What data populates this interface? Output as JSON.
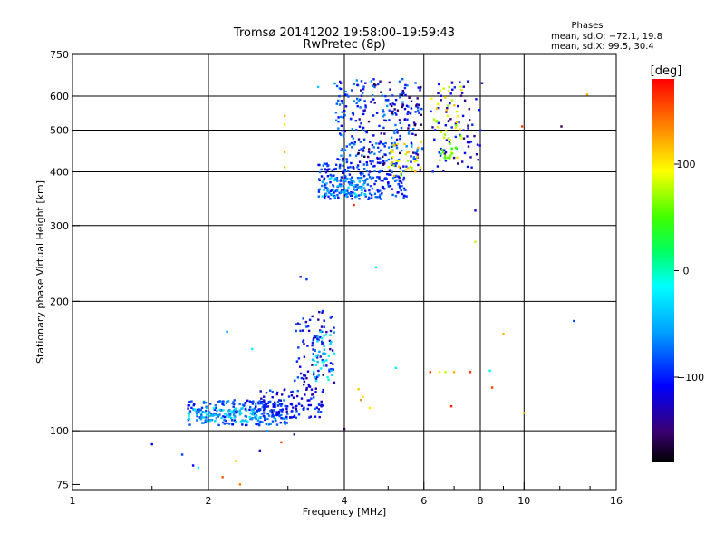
{
  "chart_data": {
    "type": "scatter",
    "title": "Tromsø 20141202 19:58:00–19:59:43",
    "subtitle": "RwPretec (8p)",
    "xlabel": "Frequency [MHz]",
    "ylabel": "Stationary phase Virtual Height [km]",
    "x_scale": "log2",
    "y_scale": "log",
    "xlim": [
      1,
      16
    ],
    "ylim": [
      73,
      750
    ],
    "x_ticks": [
      1,
      2,
      4,
      6,
      8,
      10,
      16
    ],
    "y_ticks": [
      75,
      100,
      200,
      300,
      400,
      500,
      600,
      750
    ],
    "grid": true,
    "stats": {
      "heading": "Phases",
      "line_o": "mean, sd,O: −72.1, 19.8",
      "line_x": "mean, sd,X:  99.5, 30.4"
    },
    "colorbar": {
      "label": "[deg]",
      "range": [
        -180,
        180
      ],
      "ticks": [
        100,
        0,
        -100
      ],
      "colors": [
        "#000000",
        "#3a0070",
        "#0000ff",
        "#00a0ff",
        "#00ffff",
        "#00ff60",
        "#40ff00",
        "#ffff00",
        "#ff8000",
        "#ff0000"
      ]
    },
    "series": [
      {
        "clusters": [
          {
            "x": [
              1.8,
              3.0
            ],
            "y": [
              103,
              118
            ],
            "phase": -85,
            "n": 200
          },
          {
            "x": [
              1.8,
              2.6
            ],
            "y": [
              105,
              113
            ],
            "phase": -40,
            "n": 70
          },
          {
            "x": [
              2.6,
              3.6
            ],
            "y": [
              107,
              125
            ],
            "phase": -105,
            "n": 120
          },
          {
            "x": [
              3.1,
              3.8
            ],
            "y": [
              125,
              190
            ],
            "phase": -110,
            "n": 90
          },
          {
            "x": [
              3.4,
              3.8
            ],
            "y": [
              130,
              170
            ],
            "phase": -35,
            "n": 40
          },
          {
            "x": [
              3.5,
              5.5
            ],
            "y": [
              345,
              420
            ],
            "phase": -95,
            "n": 240
          },
          {
            "x": [
              3.5,
              4.5
            ],
            "y": [
              350,
              390
            ],
            "phase": -50,
            "n": 80
          },
          {
            "x": [
              3.8,
              6.0
            ],
            "y": [
              420,
              660
            ],
            "phase": -90,
            "n": 230
          },
          {
            "x": [
              4.3,
              6.0
            ],
            "y": [
              400,
              650
            ],
            "phase": -140,
            "n": 70
          },
          {
            "x": [
              5.0,
              6.0
            ],
            "y": [
              380,
              470
            ],
            "phase": 95,
            "n": 35
          },
          {
            "x": [
              6.2,
              8.1
            ],
            "y": [
              400,
              660
            ],
            "phase": -120,
            "n": 75
          },
          {
            "x": [
              6.2,
              7.3
            ],
            "y": [
              420,
              640
            ],
            "phase": 90,
            "n": 40
          },
          {
            "x": [
              6.5,
              7.1
            ],
            "y": [
              430,
              470
            ],
            "phase": 40,
            "n": 12
          }
        ],
        "points": [
          {
            "x": 1.5,
            "y": 93,
            "phase": -110
          },
          {
            "x": 1.75,
            "y": 88,
            "phase": -90
          },
          {
            "x": 1.85,
            "y": 83,
            "phase": -110
          },
          {
            "x": 1.9,
            "y": 82,
            "phase": -20
          },
          {
            "x": 2.15,
            "y": 78,
            "phase": 150
          },
          {
            "x": 2.35,
            "y": 75,
            "phase": 140
          },
          {
            "x": 2.3,
            "y": 85,
            "phase": 110
          },
          {
            "x": 2.6,
            "y": 90,
            "phase": -130
          },
          {
            "x": 2.9,
            "y": 94,
            "phase": 160
          },
          {
            "x": 3.1,
            "y": 98,
            "phase": -140
          },
          {
            "x": 2.5,
            "y": 155,
            "phase": -20
          },
          {
            "x": 2.2,
            "y": 170,
            "phase": -60
          },
          {
            "x": 2.7,
            "y": 100,
            "phase": -60
          },
          {
            "x": 3.2,
            "y": 228,
            "phase": -120
          },
          {
            "x": 3.3,
            "y": 225,
            "phase": -90
          },
          {
            "x": 3.5,
            "y": 630,
            "phase": -40
          },
          {
            "x": 2.95,
            "y": 540,
            "phase": 120
          },
          {
            "x": 2.95,
            "y": 515,
            "phase": 100
          },
          {
            "x": 2.95,
            "y": 445,
            "phase": 120
          },
          {
            "x": 2.95,
            "y": 410,
            "phase": 110
          },
          {
            "x": 4.2,
            "y": 335,
            "phase": 170
          },
          {
            "x": 4.3,
            "y": 125,
            "phase": 110
          },
          {
            "x": 4.4,
            "y": 120,
            "phase": 100
          },
          {
            "x": 4.35,
            "y": 118,
            "phase": 130
          },
          {
            "x": 4.55,
            "y": 113,
            "phase": 100
          },
          {
            "x": 4.7,
            "y": 240,
            "phase": -10
          },
          {
            "x": 5.2,
            "y": 140,
            "phase": -20
          },
          {
            "x": 6.2,
            "y": 137,
            "phase": 160
          },
          {
            "x": 6.5,
            "y": 137,
            "phase": 90
          },
          {
            "x": 6.7,
            "y": 137,
            "phase": 80
          },
          {
            "x": 7.0,
            "y": 137,
            "phase": 120
          },
          {
            "x": 7.6,
            "y": 137,
            "phase": 170
          },
          {
            "x": 8.4,
            "y": 138,
            "phase": -10
          },
          {
            "x": 8.5,
            "y": 126,
            "phase": 160
          },
          {
            "x": 6.9,
            "y": 114,
            "phase": 170
          },
          {
            "x": 4.0,
            "y": 101,
            "phase": -160
          },
          {
            "x": 7.8,
            "y": 275,
            "phase": 80
          },
          {
            "x": 7.8,
            "y": 325,
            "phase": -120
          },
          {
            "x": 9.0,
            "y": 168,
            "phase": 120
          },
          {
            "x": 10.0,
            "y": 110,
            "phase": 110
          },
          {
            "x": 12.1,
            "y": 510,
            "phase": -160
          },
          {
            "x": 12.9,
            "y": 180,
            "phase": -90
          },
          {
            "x": 13.8,
            "y": 605,
            "phase": 120
          },
          {
            "x": 9.9,
            "y": 510,
            "phase": 160
          }
        ]
      }
    ]
  }
}
